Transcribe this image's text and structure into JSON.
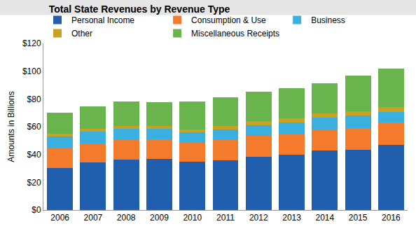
{
  "chart_data": {
    "type": "bar",
    "title": "Total State Revenues by Revenue Type",
    "y_label": "Amounts in Billions",
    "stacked": true,
    "grid": false,
    "legend": "top",
    "categories": [
      "2006",
      "2007",
      "2008",
      "2009",
      "2010",
      "2011",
      "2012",
      "2013",
      "2014",
      "2015",
      "2016"
    ],
    "series": [
      {
        "name": "Personal Income",
        "color": "#1f5fad",
        "values": [
          30.5,
          34.5,
          36.5,
          37,
          35,
          36,
          38.5,
          40,
          43,
          43.5,
          47
        ]
      },
      {
        "name": "Consumption & Use",
        "color": "#f47a2c",
        "values": [
          14.5,
          13.5,
          14,
          14,
          13.5,
          14.5,
          15,
          14.5,
          15,
          15.5,
          16
        ]
      },
      {
        "name": "Business",
        "color": "#39b0e0",
        "values": [
          8,
          8.5,
          8,
          7.5,
          7.5,
          7.5,
          7.5,
          8.5,
          8.5,
          9,
          7.5
        ]
      },
      {
        "name": "Other",
        "color": "#c9a224",
        "values": [
          2,
          2,
          2,
          2,
          2,
          2.5,
          3,
          3,
          3,
          3,
          3.5
        ]
      },
      {
        "name": "Miscellaneous Receipts",
        "color": "#6ab44e",
        "values": [
          15,
          16,
          17.5,
          17,
          20,
          20.5,
          21,
          21.5,
          22,
          26,
          28
        ]
      }
    ],
    "ylim": [
      0,
      120
    ],
    "yticks": [
      {
        "value": 0,
        "label": "$0"
      },
      {
        "value": 20,
        "label": "$20"
      },
      {
        "value": 40,
        "label": "$40"
      },
      {
        "value": 60,
        "label": "$60"
      },
      {
        "value": 80,
        "label": "$80"
      },
      {
        "value": 100,
        "label": "$100"
      },
      {
        "value": 120,
        "label": "$120"
      }
    ]
  }
}
